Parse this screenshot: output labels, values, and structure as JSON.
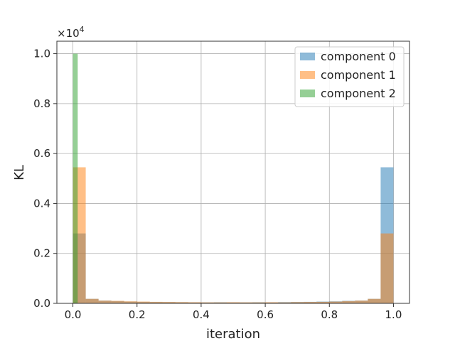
{
  "chart_data": {
    "type": "bar",
    "xlabel": "iteration",
    "ylabel": "KL",
    "y_multiplier_label": "×10",
    "y_multiplier_exp": "4",
    "xlim": [
      -0.05,
      1.05
    ],
    "ylim": [
      0,
      10500
    ],
    "grid": true,
    "legend_position": "top-right",
    "x_ticks": [
      0.0,
      0.2,
      0.4,
      0.6,
      0.8,
      1.0
    ],
    "x_tick_labels": [
      "0.0",
      "0.2",
      "0.4",
      "0.6",
      "0.8",
      "1.0"
    ],
    "y_ticks": [
      0,
      2000,
      4000,
      6000,
      8000,
      10000
    ],
    "y_tick_labels": [
      "0.0",
      "0.2",
      "0.4",
      "0.6",
      "0.8",
      "1.0"
    ],
    "bar_opacity": 0.5,
    "series": [
      {
        "name": "component 0",
        "color": "#1f77b4",
        "bins": [
          [
            0.0,
            0.04,
            2800
          ],
          [
            0.04,
            0.08,
            180
          ],
          [
            0.08,
            0.12,
            110
          ],
          [
            0.12,
            0.16,
            90
          ],
          [
            0.16,
            0.2,
            70
          ],
          [
            0.2,
            0.24,
            60
          ],
          [
            0.24,
            0.28,
            55
          ],
          [
            0.28,
            0.32,
            50
          ],
          [
            0.32,
            0.36,
            45
          ],
          [
            0.36,
            0.4,
            40
          ],
          [
            0.4,
            0.44,
            40
          ],
          [
            0.44,
            0.48,
            45
          ],
          [
            0.48,
            0.52,
            40
          ],
          [
            0.52,
            0.56,
            40
          ],
          [
            0.56,
            0.6,
            45
          ],
          [
            0.6,
            0.64,
            40
          ],
          [
            0.64,
            0.68,
            50
          ],
          [
            0.68,
            0.72,
            55
          ],
          [
            0.72,
            0.76,
            60
          ],
          [
            0.76,
            0.8,
            70
          ],
          [
            0.8,
            0.84,
            80
          ],
          [
            0.84,
            0.88,
            100
          ],
          [
            0.88,
            0.92,
            110
          ],
          [
            0.92,
            0.96,
            180
          ],
          [
            0.96,
            1.0,
            5450
          ]
        ]
      },
      {
        "name": "component 1",
        "color": "#ff7f0e",
        "bins": [
          [
            0.0,
            0.04,
            5450
          ],
          [
            0.04,
            0.08,
            180
          ],
          [
            0.08,
            0.12,
            110
          ],
          [
            0.12,
            0.16,
            100
          ],
          [
            0.16,
            0.2,
            80
          ],
          [
            0.2,
            0.24,
            70
          ],
          [
            0.24,
            0.28,
            60
          ],
          [
            0.28,
            0.32,
            55
          ],
          [
            0.32,
            0.36,
            50
          ],
          [
            0.36,
            0.4,
            45
          ],
          [
            0.4,
            0.44,
            40
          ],
          [
            0.44,
            0.48,
            40
          ],
          [
            0.48,
            0.52,
            45
          ],
          [
            0.52,
            0.56,
            40
          ],
          [
            0.56,
            0.6,
            40
          ],
          [
            0.6,
            0.64,
            45
          ],
          [
            0.64,
            0.68,
            40
          ],
          [
            0.68,
            0.72,
            50
          ],
          [
            0.72,
            0.76,
            55
          ],
          [
            0.76,
            0.8,
            60
          ],
          [
            0.8,
            0.84,
            70
          ],
          [
            0.84,
            0.88,
            90
          ],
          [
            0.88,
            0.92,
            110
          ],
          [
            0.92,
            0.96,
            180
          ],
          [
            0.96,
            1.0,
            2800
          ]
        ]
      },
      {
        "name": "component 2",
        "color": "#2ca02c",
        "bins": [
          [
            0.0,
            0.015,
            10000
          ]
        ]
      }
    ]
  }
}
